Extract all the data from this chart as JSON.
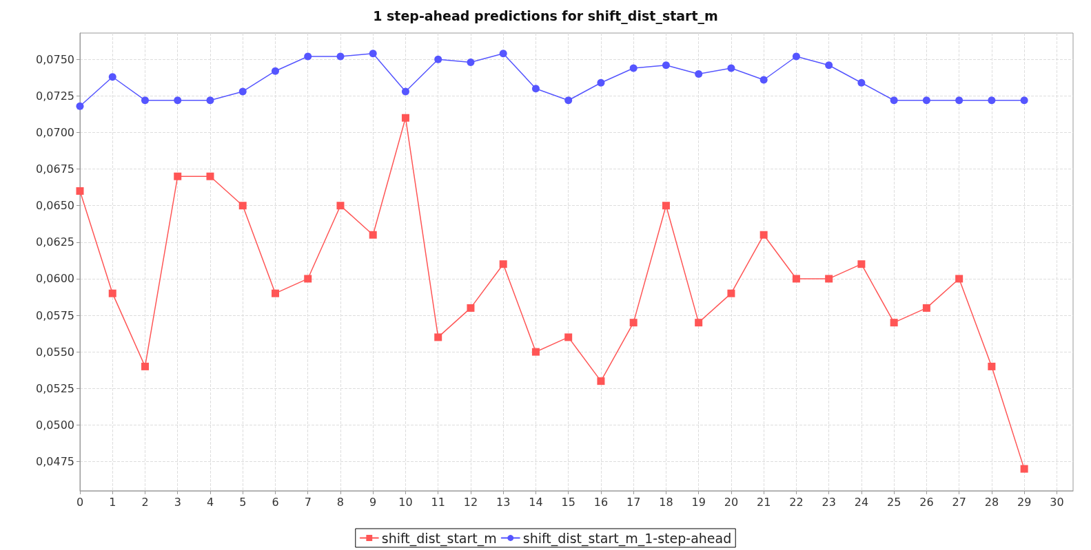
{
  "chart_data": {
    "type": "line",
    "title": "1 step-ahead predictions for shift_dist_start_m",
    "x": [
      0,
      1,
      2,
      3,
      4,
      5,
      6,
      7,
      8,
      9,
      10,
      11,
      12,
      13,
      14,
      15,
      16,
      17,
      18,
      19,
      20,
      21,
      22,
      23,
      24,
      25,
      26,
      27,
      28,
      29
    ],
    "series": [
      {
        "name": "shift_dist_start_m",
        "color": "#ff5555",
        "marker": "square",
        "values": [
          0.066,
          0.059,
          0.054,
          0.067,
          0.067,
          0.065,
          0.059,
          0.06,
          0.065,
          0.063,
          0.071,
          0.056,
          0.058,
          0.061,
          0.055,
          0.056,
          0.053,
          0.057,
          0.065,
          0.057,
          0.059,
          0.063,
          0.06,
          0.06,
          0.061,
          0.057,
          0.058,
          0.06,
          0.054,
          0.047
        ]
      },
      {
        "name": "shift_dist_start_m_1-step-ahead",
        "color": "#5555ff",
        "marker": "circle",
        "values": [
          0.0718,
          0.0738,
          0.0722,
          0.0722,
          0.0722,
          0.0728,
          0.0742,
          0.0752,
          0.0752,
          0.0754,
          0.0728,
          0.075,
          0.0748,
          0.0754,
          0.073,
          0.0722,
          0.0734,
          0.0744,
          0.0746,
          0.074,
          0.0744,
          0.0736,
          0.0752,
          0.0746,
          0.0734,
          0.0722,
          0.0722,
          0.0722,
          0.0722,
          0.0722
        ]
      }
    ],
    "xlim": [
      0,
      30.5
    ],
    "xticks": [
      0,
      1,
      2,
      3,
      4,
      5,
      6,
      7,
      8,
      9,
      10,
      11,
      12,
      13,
      14,
      15,
      16,
      17,
      18,
      19,
      20,
      21,
      22,
      23,
      24,
      25,
      26,
      27,
      28,
      29,
      30
    ],
    "ylim": [
      0.0455,
      0.0768
    ],
    "yticks": [
      {
        "value": 0.0475,
        "label": "0,0475"
      },
      {
        "value": 0.05,
        "label": "0,0500"
      },
      {
        "value": 0.0525,
        "label": "0,0525"
      },
      {
        "value": 0.055,
        "label": "0,0550"
      },
      {
        "value": 0.0575,
        "label": "0,0575"
      },
      {
        "value": 0.06,
        "label": "0,0600"
      },
      {
        "value": 0.0625,
        "label": "0,0625"
      },
      {
        "value": 0.065,
        "label": "0,0650"
      },
      {
        "value": 0.0675,
        "label": "0,0675"
      },
      {
        "value": 0.07,
        "label": "0,0700"
      },
      {
        "value": 0.0725,
        "label": "0,0725"
      },
      {
        "value": 0.075,
        "label": "0,0750"
      }
    ],
    "grid": true,
    "legend": "bottom",
    "line_style": "solid"
  }
}
